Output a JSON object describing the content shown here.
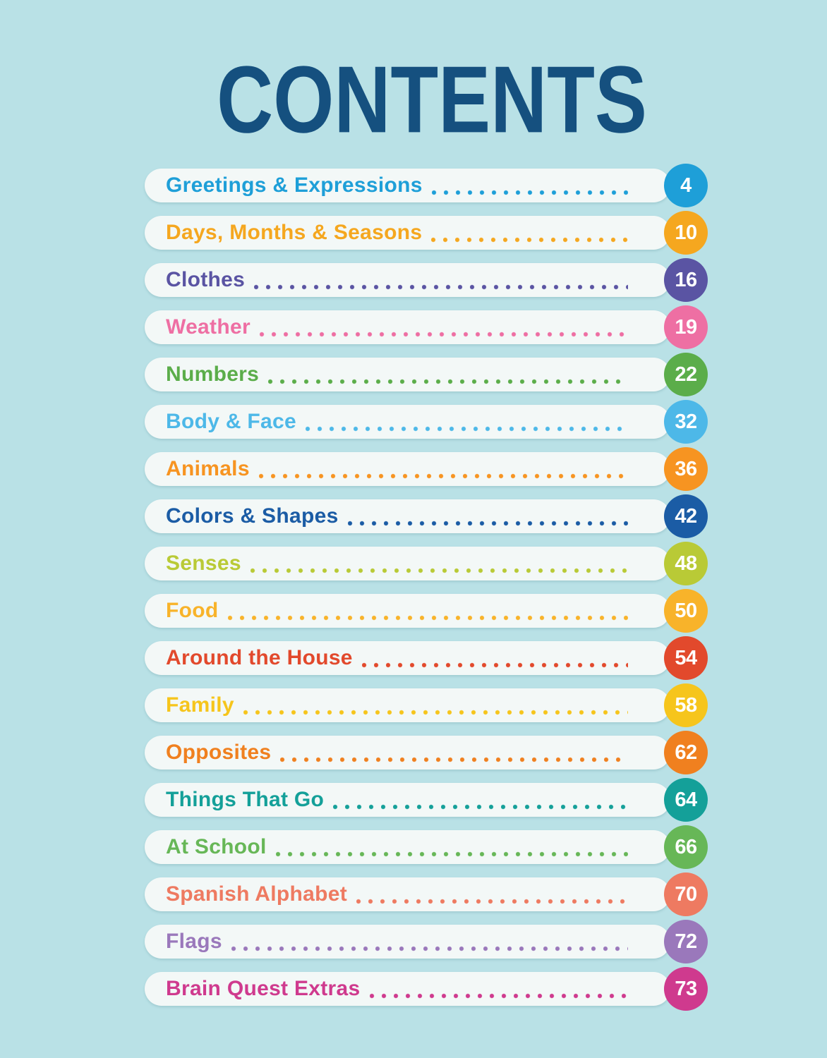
{
  "page": {
    "title": "CONTENTS",
    "background_color": "#b9e1e6",
    "pill_color": "#f3f8f7",
    "title_color": "#15507f"
  },
  "contents": {
    "items": [
      {
        "label": "Greetings & Expressions",
        "page": "4",
        "color": "#1e9fd8"
      },
      {
        "label": "Days, Months & Seasons",
        "page": "10",
        "color": "#f5a71f"
      },
      {
        "label": "Clothes",
        "page": "16",
        "color": "#5a54a3"
      },
      {
        "label": "Weather",
        "page": "19",
        "color": "#ee6fa3"
      },
      {
        "label": "Numbers",
        "page": "22",
        "color": "#5bad4a"
      },
      {
        "label": "Body & Face",
        "page": "32",
        "color": "#4db8e8"
      },
      {
        "label": "Animals",
        "page": "36",
        "color": "#f79421"
      },
      {
        "label": "Colors & Shapes",
        "page": "42",
        "color": "#1b5ca5"
      },
      {
        "label": "Senses",
        "page": "48",
        "color": "#b9ca36"
      },
      {
        "label": "Food",
        "page": "50",
        "color": "#f8b32a"
      },
      {
        "label": "Around the House",
        "page": "54",
        "color": "#e2492c"
      },
      {
        "label": "Family",
        "page": "58",
        "color": "#f6c51c"
      },
      {
        "label": "Opposites",
        "page": "62",
        "color": "#f0801f"
      },
      {
        "label": "Things That Go",
        "page": "64",
        "color": "#14a099"
      },
      {
        "label": "At School",
        "page": "66",
        "color": "#67b757"
      },
      {
        "label": "Spanish Alphabet",
        "page": "70",
        "color": "#ee7a61"
      },
      {
        "label": "Flags",
        "page": "72",
        "color": "#9a78bb"
      },
      {
        "label": "Brain Quest Extras",
        "page": "73",
        "color": "#cf3a8e"
      }
    ]
  }
}
